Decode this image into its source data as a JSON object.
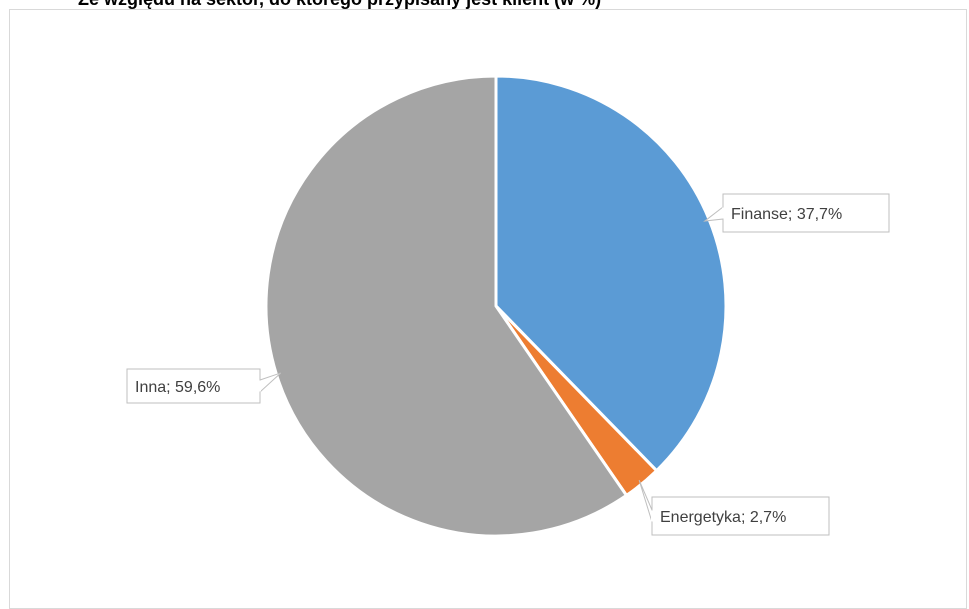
{
  "title": "Ze względu na sektor, do którego przypisany jest klient (w %)",
  "chart_data": {
    "type": "pie",
    "title": "Ze względu na sektor, do którego przypisany jest klient (w %)",
    "slices": [
      {
        "name": "Finanse",
        "value": 37.7,
        "label": "Finanse; 37,7%",
        "color": "#5b9bd5"
      },
      {
        "name": "Energetyka",
        "value": 2.7,
        "label": "Energetyka; 2,7%",
        "color": "#ed7d31"
      },
      {
        "name": "Inna",
        "value": 59.6,
        "label": "Inna; 59,6%",
        "color": "#a5a5a5"
      }
    ],
    "start_angle": "12 o'clock",
    "direction": "clockwise",
    "legend": "none"
  }
}
